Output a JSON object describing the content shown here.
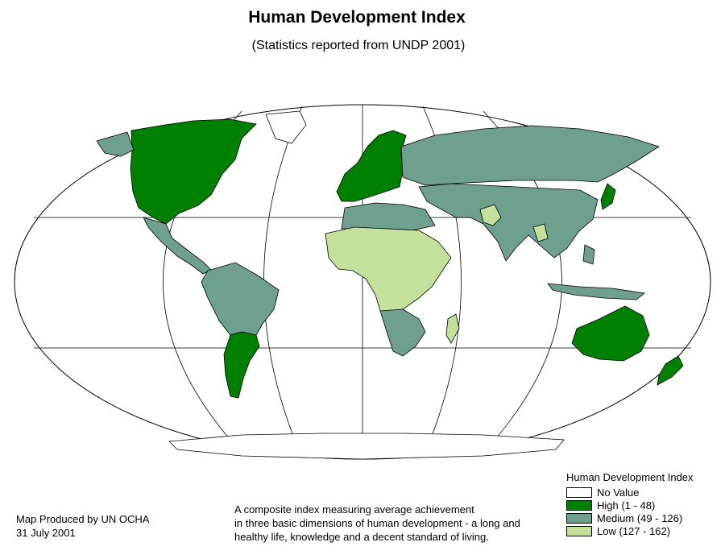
{
  "title": "Human Development Index",
  "subtitle": "(Statistics reported from UNDP 2001)",
  "credit": {
    "line1": "Map Produced by UN OCHA",
    "line2": "31 July 2001"
  },
  "description": {
    "line1": "A composite index measuring average achievement",
    "line2": "in three basic dimensions of human development - a long and",
    "line3": "healthy life, knowledge and a decent standard of living."
  },
  "legend": {
    "title": "Human Development Index",
    "items": [
      {
        "label": "No Value",
        "color": "#ffffff"
      },
      {
        "label": "High (1 - 48)",
        "color": "#008000"
      },
      {
        "label": "Medium (49 - 126)",
        "color": "#6f9f8f"
      },
      {
        "label": "Low (127 - 162)",
        "color": "#c3e19a"
      }
    ]
  },
  "colors": {
    "ocean": "#ffffff",
    "outline": "#000000",
    "graticule": "#000000"
  }
}
